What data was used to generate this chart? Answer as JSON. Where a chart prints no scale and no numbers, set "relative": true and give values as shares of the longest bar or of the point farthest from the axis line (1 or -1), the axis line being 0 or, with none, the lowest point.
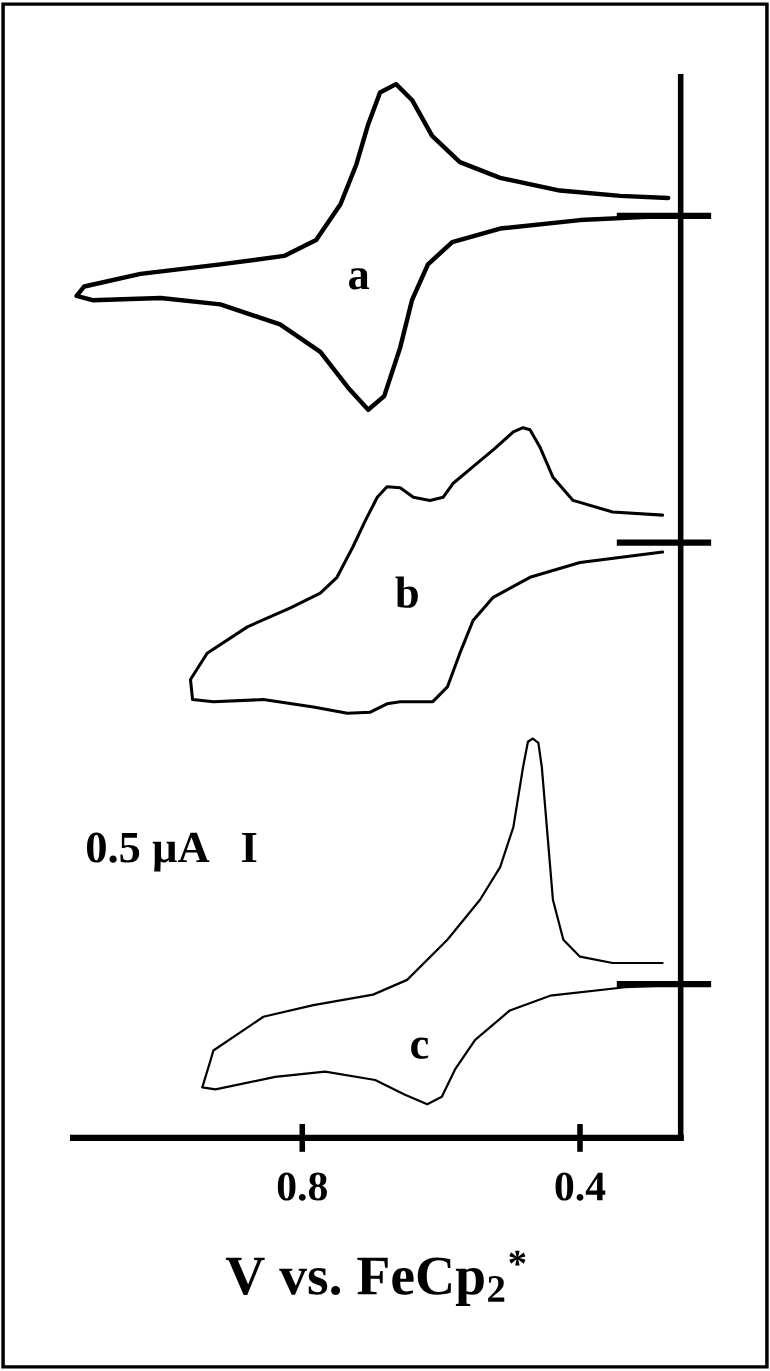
{
  "chart_data": {
    "type": "line",
    "relative": true,
    "xlabel": "V vs. FeCp$_{2}$$^{*}$",
    "xlim": [
      1.13,
      0.255
    ],
    "xticks": [
      0.8,
      0.4
    ],
    "grid": false,
    "marker": "none",
    "line_style": "solid",
    "series": [
      {
        "color": "#000000",
        "x": [
          0.273,
          0.342,
          0.429,
          0.515,
          0.573,
          0.613,
          0.642,
          0.665,
          0.688,
          0.705,
          0.722,
          0.745,
          0.78,
          0.826,
          0.918,
          1.033,
          1.114,
          1.125,
          1.102,
          1.004,
          0.918,
          0.832,
          0.774,
          0.734,
          0.705,
          0.682,
          0.659,
          0.642,
          0.619,
          0.584,
          0.515,
          0.4,
          0.273
        ],
        "values": [
          0.892,
          0.894,
          0.899,
          0.911,
          0.926,
          0.951,
          0.985,
          1.0,
          0.992,
          0.962,
          0.924,
          0.886,
          0.852,
          0.837,
          0.829,
          0.82,
          0.808,
          0.799,
          0.795,
          0.797,
          0.791,
          0.772,
          0.746,
          0.712,
          0.691,
          0.704,
          0.75,
          0.795,
          0.829,
          0.85,
          0.863,
          0.871,
          0.875
        ]
      },
      {
        "color": "#000000",
        "x": [
          0.281,
          0.353,
          0.41,
          0.439,
          0.458,
          0.472,
          0.482,
          0.496,
          0.525,
          0.554,
          0.583,
          0.597,
          0.616,
          0.64,
          0.659,
          0.678,
          0.692,
          0.709,
          0.727,
          0.75,
          0.774,
          0.817,
          0.879,
          0.937,
          0.961,
          0.958,
          0.928,
          0.856,
          0.784,
          0.735,
          0.702,
          0.678,
          0.659,
          0.612,
          0.591,
          0.573,
          0.554,
          0.525,
          0.472,
          0.4,
          0.281
        ],
        "values": [
          0.591,
          0.594,
          0.605,
          0.627,
          0.656,
          0.672,
          0.674,
          0.67,
          0.653,
          0.637,
          0.621,
          0.608,
          0.605,
          0.608,
          0.617,
          0.618,
          0.608,
          0.586,
          0.561,
          0.532,
          0.517,
          0.503,
          0.485,
          0.46,
          0.435,
          0.416,
          0.414,
          0.416,
          0.409,
          0.403,
          0.404,
          0.412,
          0.414,
          0.414,
          0.428,
          0.46,
          0.491,
          0.513,
          0.532,
          0.546,
          0.556
        ]
      },
      {
        "color": "#000000",
        "x": [
          0.281,
          0.353,
          0.4,
          0.424,
          0.439,
          0.447,
          0.455,
          0.46,
          0.468,
          0.475,
          0.482,
          0.496,
          0.515,
          0.544,
          0.591,
          0.649,
          0.698,
          0.784,
          0.856,
          0.928,
          0.932,
          0.944,
          0.925,
          0.839,
          0.767,
          0.695,
          0.652,
          0.62,
          0.599,
          0.58,
          0.551,
          0.501,
          0.443,
          0.335,
          0.263
        ],
        "values": [
          0.166,
          0.166,
          0.172,
          0.188,
          0.226,
          0.289,
          0.352,
          0.375,
          0.379,
          0.376,
          0.352,
          0.295,
          0.257,
          0.226,
          0.188,
          0.15,
          0.136,
          0.126,
          0.115,
          0.083,
          0.074,
          0.048,
          0.046,
          0.058,
          0.063,
          0.055,
          0.041,
          0.032,
          0.039,
          0.065,
          0.093,
          0.121,
          0.135,
          0.143,
          0.145
        ]
      }
    ],
    "ref_lines": [
      {
        "axis": "y",
        "value": 0.875,
        "color": "#000000"
      },
      {
        "axis": "y",
        "value": 0.565,
        "color": "#000000"
      },
      {
        "axis": "y",
        "value": 0.146,
        "color": "#000000"
      }
    ],
    "annotations": [
      "a",
      "b",
      "c",
      "0.5 µA   I"
    ]
  }
}
